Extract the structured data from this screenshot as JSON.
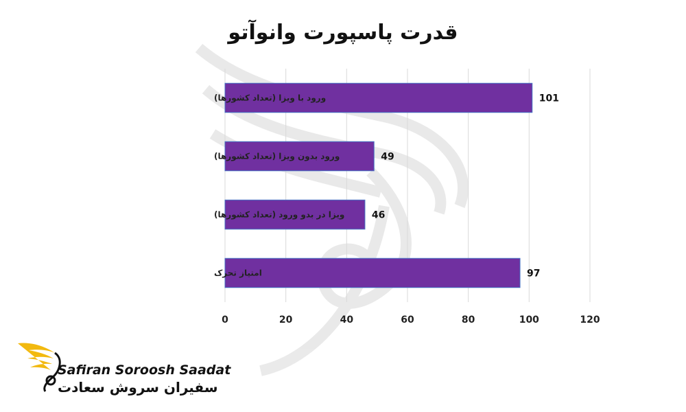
{
  "chart_data": {
    "type": "bar",
    "orientation": "horizontal",
    "title": "قدرت پاسپورت وانوآتو",
    "categories": [
      "ورود با ویزا (تعداد کشورها)",
      "ورود بدون ویزا (تعداد کشورها)",
      "ویزا در بدو ورود (تعداد کشورها)",
      "امتیاز تحرک"
    ],
    "values": [
      101,
      49,
      46,
      97
    ],
    "data_labels": [
      "101",
      "49",
      "46",
      "97"
    ],
    "xlim": [
      0,
      120
    ],
    "x_ticks": [
      0,
      20,
      40,
      60,
      80,
      100,
      120
    ],
    "x_tick_labels": [
      "0",
      "20",
      "40",
      "60",
      "80",
      "100",
      "120"
    ],
    "grid": "vertical",
    "legend": "none",
    "bar_color": "#7030a0",
    "bar_edge_color": "#4472c4"
  },
  "watermark": {
    "icon": "bird-swirl-icon",
    "color": "#d9d9d9"
  },
  "brand": {
    "name_latin": "Safiran Soroosh Saadat",
    "name_persian": "سفیران سروش سعادت",
    "icon": "golden-wing-logo-icon",
    "wing_color": "#f2b90f",
    "text_color": "#111111"
  }
}
